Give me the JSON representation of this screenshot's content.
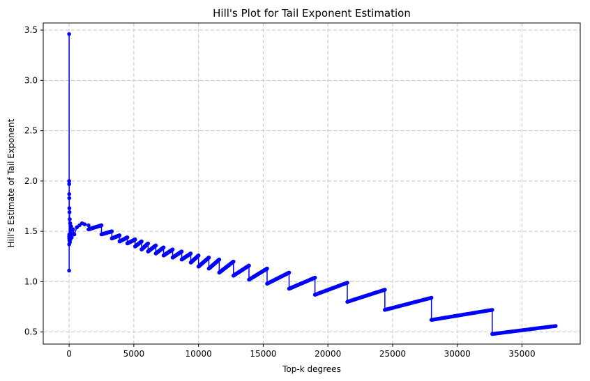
{
  "chart_data": {
    "type": "line",
    "title": "Hill's Plot for Tail Exponent Estimation",
    "xlabel": "Top-k degrees",
    "ylabel": "Hill's Estimate of Tail Exponent",
    "xlim": [
      -2000,
      39500
    ],
    "ylim": [
      0.38,
      3.57
    ],
    "xticks": [
      0,
      5000,
      10000,
      15000,
      20000,
      25000,
      30000,
      35000
    ],
    "yticks": [
      0.5,
      1.0,
      1.5,
      2.0,
      2.5,
      3.0,
      3.5
    ],
    "xtick_labels": [
      "0",
      "5000",
      "10000",
      "15000",
      "20000",
      "25000",
      "30000",
      "35000"
    ],
    "ytick_labels": [
      "0.5",
      "1.0",
      "1.5",
      "2.0",
      "2.5",
      "3.0",
      "3.5"
    ],
    "grid": true,
    "line_color": "#0000ff",
    "marker": "circle",
    "series": [
      {
        "spike_points": [
          [
            1,
            3.46
          ],
          [
            2,
            1.11
          ],
          [
            3,
            2.0
          ],
          [
            4,
            1.37
          ],
          [
            5,
            1.97
          ],
          [
            6,
            1.45
          ],
          [
            8,
            1.87
          ],
          [
            10,
            1.43
          ],
          [
            12,
            1.83
          ],
          [
            15,
            1.47
          ],
          [
            20,
            1.73
          ],
          [
            25,
            1.41
          ],
          [
            30,
            1.69
          ],
          [
            40,
            1.44
          ],
          [
            50,
            1.62
          ],
          [
            60,
            1.39
          ],
          [
            80,
            1.58
          ],
          [
            100,
            1.42
          ],
          [
            150,
            1.55
          ],
          [
            200,
            1.44
          ],
          [
            300,
            1.52
          ],
          [
            400,
            1.47
          ],
          [
            600,
            1.54
          ],
          [
            800,
            1.56
          ],
          [
            1000,
            1.58
          ],
          [
            1200,
            1.57
          ],
          [
            1500,
            1.56
          ]
        ],
        "segments": [
          {
            "start": [
              1500,
              1.52
            ],
            "end": [
              2500,
              1.56
            ]
          },
          {
            "start": [
              2500,
              1.47
            ],
            "end": [
              3300,
              1.5
            ]
          },
          {
            "start": [
              3300,
              1.43
            ],
            "end": [
              3900,
              1.46
            ]
          },
          {
            "start": [
              3900,
              1.4
            ],
            "end": [
              4500,
              1.44
            ]
          },
          {
            "start": [
              4500,
              1.38
            ],
            "end": [
              5100,
              1.42
            ]
          },
          {
            "start": [
              5100,
              1.35
            ],
            "end": [
              5600,
              1.4
            ]
          },
          {
            "start": [
              5600,
              1.32
            ],
            "end": [
              6100,
              1.38
            ]
          },
          {
            "start": [
              6100,
              1.3
            ],
            "end": [
              6700,
              1.36
            ]
          },
          {
            "start": [
              6700,
              1.28
            ],
            "end": [
              7300,
              1.34
            ]
          },
          {
            "start": [
              7300,
              1.26
            ],
            "end": [
              8000,
              1.32
            ]
          },
          {
            "start": [
              8000,
              1.24
            ],
            "end": [
              8700,
              1.3
            ]
          },
          {
            "start": [
              8700,
              1.22
            ],
            "end": [
              9400,
              1.28
            ]
          },
          {
            "start": [
              9400,
              1.19
            ],
            "end": [
              10000,
              1.26
            ]
          },
          {
            "start": [
              10000,
              1.15
            ],
            "end": [
              10800,
              1.24
            ]
          },
          {
            "start": [
              10800,
              1.13
            ],
            "end": [
              11600,
              1.22
            ]
          },
          {
            "start": [
              11600,
              1.09
            ],
            "end": [
              12700,
              1.2
            ]
          },
          {
            "start": [
              12700,
              1.06
            ],
            "end": [
              13900,
              1.16
            ]
          },
          {
            "start": [
              13900,
              1.02
            ],
            "end": [
              15300,
              1.13
            ]
          },
          {
            "start": [
              15300,
              0.98
            ],
            "end": [
              17000,
              1.09
            ]
          },
          {
            "start": [
              17000,
              0.93
            ],
            "end": [
              19000,
              1.04
            ]
          },
          {
            "start": [
              19000,
              0.87
            ],
            "end": [
              21500,
              0.99
            ]
          },
          {
            "start": [
              21500,
              0.8
            ],
            "end": [
              24400,
              0.92
            ]
          },
          {
            "start": [
              24400,
              0.72
            ],
            "end": [
              28000,
              0.84
            ]
          },
          {
            "start": [
              28000,
              0.62
            ],
            "end": [
              32700,
              0.72
            ]
          },
          {
            "start": [
              32700,
              0.48
            ],
            "end": [
              37600,
              0.56
            ]
          }
        ]
      }
    ]
  }
}
